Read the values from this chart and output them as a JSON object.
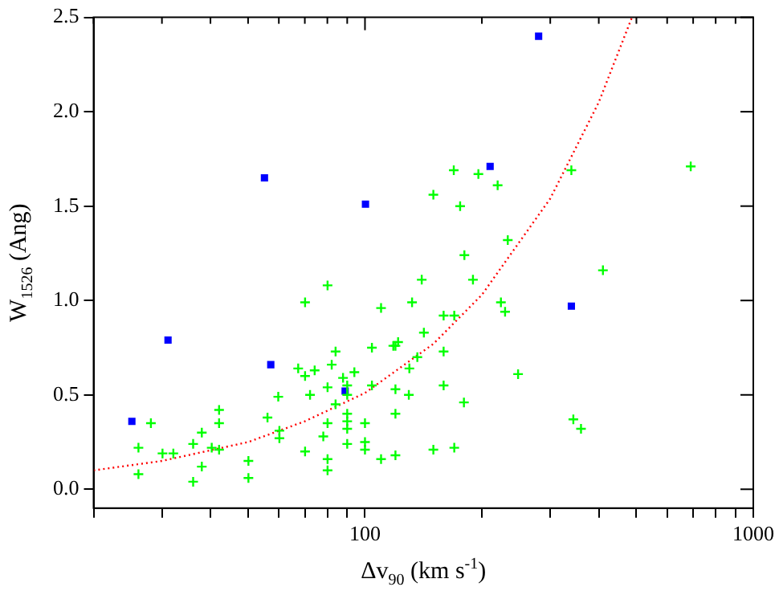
{
  "chart_data": {
    "type": "scatter",
    "xlabel": "Δv$_{90}$ (km s$^{-1}$)",
    "ylabel": "W$_{1526}$ (Ang)",
    "log": "x",
    "grid": false,
    "legend": false,
    "xlim": [
      20,
      1000
    ],
    "ylim": [
      -0.1,
      2.5
    ],
    "xticks": [
      {
        "value": 20,
        "label": null
      },
      {
        "value": 30,
        "label": null
      },
      {
        "value": 40,
        "label": null
      },
      {
        "value": 50,
        "label": null
      },
      {
        "value": 60,
        "label": null
      },
      {
        "value": 70,
        "label": null
      },
      {
        "value": 80,
        "label": null
      },
      {
        "value": 90,
        "label": null
      },
      100,
      {
        "value": 200,
        "label": null
      },
      {
        "value": 300,
        "label": null
      },
      {
        "value": 400,
        "label": null
      },
      {
        "value": 500,
        "label": null
      },
      {
        "value": 600,
        "label": null
      },
      {
        "value": 700,
        "label": null
      },
      {
        "value": 800,
        "label": null
      },
      {
        "value": 900,
        "label": null
      },
      1000
    ],
    "yticks": [
      {
        "value": 0,
        "label": "0.0"
      },
      {
        "value": 0.5,
        "label": "0.5"
      },
      {
        "value": 1,
        "label": "1.0"
      },
      {
        "value": 1.5,
        "label": "1.5"
      },
      {
        "value": 2,
        "label": "2.0"
      },
      {
        "value": 2.5,
        "label": "2.5"
      }
    ],
    "series": [
      {
        "color": "#00ff00",
        "marker": "cross",
        "x": [
          26.1,
          26.1,
          28.1,
          30.1,
          32.1,
          36.1,
          36.1,
          38.0,
          38.0,
          40.3,
          42.1,
          42.1,
          42.1,
          50.1,
          50.1,
          56.1,
          59.8,
          60.2,
          60.2,
          67.3,
          70.1,
          70.1,
          70.1,
          72.2,
          74.2,
          78.1,
          80.1,
          80.1,
          80.1,
          80.1,
          80.1,
          82.1,
          84.0,
          84.0,
          87.8,
          90.0,
          90.0,
          90.0,
          90.0,
          90.0,
          90.0,
          93.9,
          100,
          100,
          100,
          104.2,
          104.2,
          110,
          110,
          118.3,
          119.8,
          119.8,
          119.8,
          119.8,
          121.7,
          129.7,
          130.1,
          132.2,
          136.4,
          140.0,
          141.8,
          150,
          150,
          159.4,
          159.4,
          159.4,
          169.3,
          169.8,
          169.8,
          175.8,
          179.8,
          180.3,
          189.7,
          195.9,
          219.6,
          223.9,
          229.5,
          233.2,
          247.9,
          340,
          344,
          360,
          410,
          690
        ],
        "values": [
          0.22,
          0.08,
          0.35,
          0.19,
          0.19,
          0.24,
          0.04,
          0.3,
          0.12,
          0.22,
          0.42,
          0.35,
          0.21,
          0.15,
          0.06,
          0.38,
          0.49,
          0.31,
          0.27,
          0.64,
          0.6,
          0.2,
          0.99,
          0.5,
          0.63,
          0.28,
          1.08,
          0.54,
          0.35,
          0.16,
          0.1,
          0.66,
          0.45,
          0.73,
          0.59,
          0.55,
          0.5,
          0.4,
          0.36,
          0.32,
          0.24,
          0.62,
          0.35,
          0.25,
          0.21,
          0.75,
          0.55,
          0.96,
          0.16,
          0.76,
          0.76,
          0.53,
          0.4,
          0.18,
          0.78,
          0.5,
          0.64,
          0.99,
          0.7,
          1.11,
          0.83,
          1.56,
          0.21,
          0.92,
          0.73,
          0.55,
          1.69,
          0.92,
          0.22,
          1.5,
          0.46,
          1.24,
          1.11,
          1.67,
          1.61,
          0.99,
          0.94,
          1.32,
          0.61,
          1.69,
          0.37,
          0.32,
          1.16,
          1.71
        ]
      },
      {
        "color": "#0000ff",
        "marker": "square",
        "x": [
          25.1,
          31.1,
          55.1,
          57.2,
          88.9,
          100.3,
          210,
          280,
          340
        ],
        "values": [
          0.36,
          0.79,
          1.65,
          0.66,
          0.52,
          1.51,
          1.71,
          2.4,
          0.97
        ]
      },
      {
        "type": "line",
        "color": "#ff0000",
        "marker": "none",
        "line_style": "dotted",
        "x": [
          20,
          30,
          50,
          70,
          100,
          150,
          200,
          300,
          400,
          487
        ],
        "values": [
          0.1,
          0.15,
          0.25,
          0.36,
          0.51,
          0.77,
          1.03,
          1.54,
          2.05,
          2.5
        ]
      }
    ]
  }
}
